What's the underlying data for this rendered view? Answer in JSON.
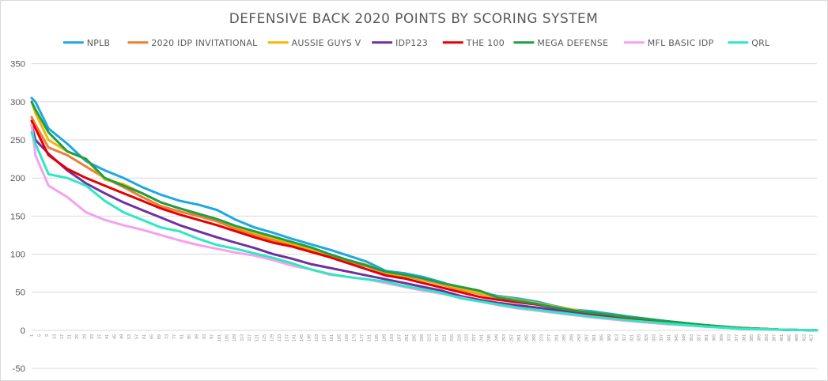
{
  "chart_data": {
    "type": "line",
    "title": "DEFENSIVE BACK 2020 POINTS BY SCORING SYSTEM",
    "xlabel": "",
    "ylabel": "",
    "ylim": [
      -50,
      350
    ],
    "yticks": [
      -50,
      0,
      50,
      100,
      150,
      200,
      250,
      300,
      350
    ],
    "grid": true,
    "legend_position": "top",
    "x_tick_start": 1,
    "x_tick_step": 4,
    "x_tick_end": 417,
    "series": [
      {
        "name": "NPLB",
        "color": "#1EA7E1",
        "x": [
          1,
          3,
          10,
          20,
          30,
          40,
          50,
          60,
          70,
          80,
          90,
          100,
          110,
          120,
          130,
          140,
          150,
          160,
          170,
          180,
          190,
          200,
          210,
          220,
          230,
          240,
          250,
          260,
          270,
          280,
          290,
          300,
          320,
          340,
          360,
          380,
          400,
          420
        ],
        "y": [
          305,
          300,
          265,
          245,
          222,
          210,
          200,
          188,
          178,
          170,
          165,
          158,
          145,
          135,
          128,
          120,
          113,
          106,
          98,
          90,
          78,
          75,
          70,
          63,
          55,
          50,
          45,
          42,
          38,
          32,
          27,
          25,
          18,
          12,
          7,
          3,
          1,
          0
        ]
      },
      {
        "name": "2020 IDP INVITATIONAL",
        "color": "#ED7D31",
        "x": [
          1,
          3,
          10,
          20,
          30,
          40,
          50,
          60,
          70,
          80,
          90,
          100,
          110,
          120,
          130,
          140,
          150,
          160,
          170,
          180,
          190,
          200,
          210,
          220,
          230,
          240,
          250,
          260,
          270,
          280,
          290,
          300,
          320,
          340,
          360,
          380,
          400,
          420
        ],
        "y": [
          280,
          270,
          240,
          230,
          215,
          200,
          188,
          175,
          163,
          156,
          150,
          143,
          133,
          125,
          118,
          112,
          104,
          98,
          90,
          84,
          75,
          71,
          66,
          60,
          53,
          48,
          43,
          39,
          35,
          30,
          26,
          22,
          16,
          11,
          6,
          3,
          1,
          0
        ]
      },
      {
        "name": "AUSSIE GUYS V",
        "color": "#F2B700",
        "x": [
          1,
          3,
          10,
          20,
          30,
          40,
          50,
          60,
          70,
          80,
          90,
          100,
          110,
          120,
          130,
          140,
          150,
          160,
          170,
          180,
          190,
          200,
          210,
          220,
          230,
          240,
          250,
          260,
          270,
          280,
          290,
          300,
          320,
          340,
          360,
          380,
          400,
          420
        ],
        "y": [
          300,
          285,
          250,
          235,
          225,
          198,
          192,
          180,
          168,
          160,
          153,
          146,
          136,
          128,
          121,
          114,
          107,
          100,
          92,
          86,
          76,
          72,
          67,
          61,
          55,
          49,
          44,
          40,
          36,
          31,
          27,
          23,
          17,
          11,
          6,
          3,
          1,
          0
        ]
      },
      {
        "name": "IDP123",
        "color": "#7030A0",
        "x": [
          1,
          3,
          10,
          20,
          30,
          40,
          50,
          60,
          70,
          80,
          90,
          100,
          110,
          120,
          130,
          140,
          150,
          160,
          170,
          180,
          190,
          200,
          210,
          220,
          230,
          240,
          250,
          260,
          270,
          280,
          290,
          300,
          320,
          340,
          360,
          380,
          400,
          420
        ],
        "y": [
          270,
          250,
          232,
          210,
          193,
          180,
          168,
          158,
          148,
          138,
          130,
          122,
          115,
          108,
          100,
          94,
          87,
          82,
          77,
          72,
          67,
          62,
          57,
          52,
          45,
          40,
          36,
          33,
          30,
          27,
          24,
          21,
          15,
          10,
          6,
          3,
          1,
          0
        ]
      },
      {
        "name": "THE 100",
        "color": "#E50000",
        "x": [
          1,
          3,
          10,
          20,
          30,
          40,
          50,
          60,
          70,
          80,
          90,
          100,
          110,
          120,
          130,
          140,
          150,
          160,
          170,
          180,
          190,
          200,
          210,
          220,
          230,
          240,
          250,
          260,
          270,
          280,
          290,
          300,
          320,
          340,
          360,
          380,
          400,
          420
        ],
        "y": [
          275,
          265,
          230,
          212,
          200,
          190,
          180,
          170,
          160,
          152,
          145,
          138,
          130,
          122,
          115,
          110,
          103,
          96,
          88,
          80,
          72,
          68,
          62,
          56,
          50,
          44,
          40,
          37,
          34,
          30,
          26,
          22,
          16,
          11,
          6,
          3,
          1,
          0
        ]
      },
      {
        "name": "MEGA DEFENSE",
        "color": "#1E9E45",
        "x": [
          1,
          3,
          10,
          20,
          30,
          40,
          50,
          60,
          70,
          80,
          90,
          100,
          110,
          120,
          130,
          140,
          150,
          160,
          170,
          180,
          190,
          200,
          210,
          220,
          230,
          240,
          250,
          260,
          270,
          280,
          290,
          300,
          320,
          340,
          360,
          380,
          400,
          420
        ],
        "y": [
          300,
          290,
          260,
          235,
          225,
          200,
          190,
          180,
          168,
          160,
          153,
          146,
          137,
          130,
          123,
          116,
          109,
          100,
          92,
          85,
          77,
          73,
          68,
          62,
          57,
          52,
          43,
          39,
          35,
          30,
          26,
          23,
          17,
          12,
          7,
          3,
          1,
          0
        ]
      },
      {
        "name": "MFL BASIC IDP",
        "color": "#F5A0F0",
        "x": [
          1,
          3,
          10,
          20,
          30,
          40,
          50,
          60,
          70,
          80,
          90,
          100,
          110,
          120,
          130,
          140,
          150,
          160,
          170,
          180,
          190,
          200,
          210,
          220,
          230,
          240,
          250,
          260,
          270,
          280,
          290,
          300,
          320,
          340,
          360,
          380,
          400,
          420
        ],
        "y": [
          270,
          230,
          190,
          175,
          155,
          145,
          138,
          132,
          125,
          118,
          112,
          107,
          102,
          98,
          92,
          85,
          80,
          73,
          70,
          67,
          62,
          57,
          52,
          48,
          43,
          38,
          33,
          29,
          26,
          23,
          20,
          17,
          12,
          8,
          5,
          2,
          1,
          0
        ]
      },
      {
        "name": "QRL",
        "color": "#2DE8C0",
        "x": [
          1,
          3,
          10,
          20,
          30,
          40,
          50,
          60,
          70,
          80,
          90,
          100,
          110,
          120,
          130,
          140,
          150,
          160,
          170,
          180,
          190,
          200,
          210,
          220,
          230,
          240,
          250,
          260,
          270,
          280,
          290,
          300,
          320,
          340,
          360,
          380,
          400,
          420
        ],
        "y": [
          260,
          245,
          205,
          200,
          190,
          170,
          155,
          145,
          135,
          130,
          120,
          112,
          107,
          101,
          95,
          88,
          80,
          74,
          70,
          67,
          64,
          58,
          54,
          49,
          42,
          38,
          34,
          30,
          27,
          24,
          21,
          18,
          13,
          9,
          5,
          2,
          1,
          0
        ]
      }
    ]
  }
}
